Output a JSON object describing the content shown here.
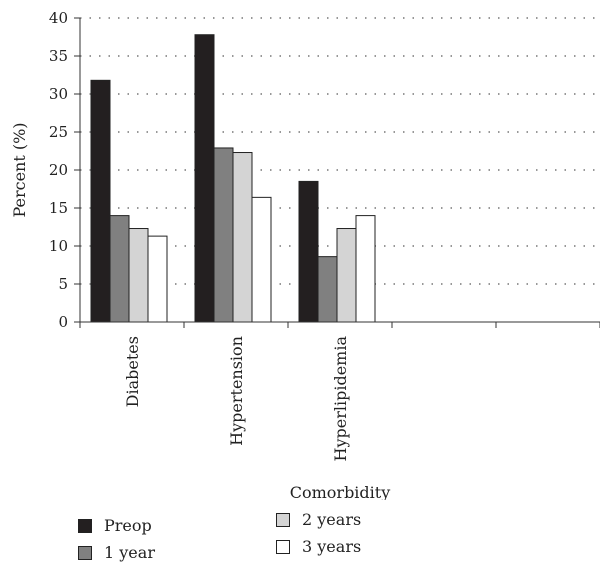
{
  "chart_data": {
    "type": "bar",
    "title": "",
    "xlabel": "Comorbidity",
    "ylabel": "Percent (%)",
    "ylim": [
      0,
      40
    ],
    "yticks": [
      0,
      5,
      10,
      15,
      20,
      25,
      30,
      35,
      40
    ],
    "grid": "horizontal dotted",
    "legend_position": "bottom",
    "categories": [
      "Diabetes",
      "Hypertension",
      "Hyperlipidemia",
      "",
      ""
    ],
    "series": [
      {
        "name": "Preop",
        "color": "#231f20",
        "values": [
          31.8,
          37.8,
          18.5,
          null,
          null
        ]
      },
      {
        "name": "1 year",
        "color": "#808080",
        "values": [
          14.0,
          22.9,
          8.6,
          null,
          null
        ]
      },
      {
        "name": "2 years",
        "color": "#d4d4d4",
        "values": [
          12.3,
          22.3,
          12.3,
          null,
          null
        ]
      },
      {
        "name": "3 years",
        "color": "#ffffff",
        "values": [
          11.3,
          16.4,
          14.0,
          null,
          null
        ]
      }
    ]
  }
}
